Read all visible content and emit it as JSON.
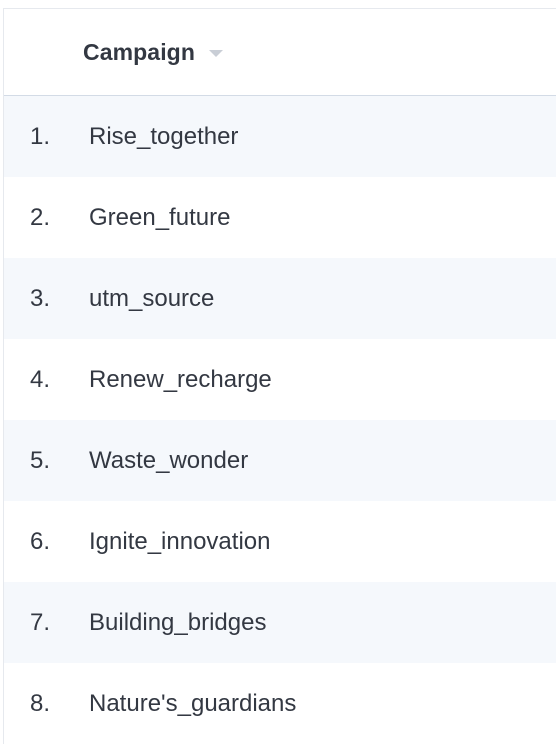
{
  "table": {
    "column_header": "Campaign",
    "sort_icon": "sort-desc-icon",
    "rows": [
      {
        "index": "1.",
        "name": "Rise_together"
      },
      {
        "index": "2.",
        "name": "Green_future"
      },
      {
        "index": "3.",
        "name": "utm_source"
      },
      {
        "index": "4.",
        "name": "Renew_recharge"
      },
      {
        "index": "5.",
        "name": "Waste_wonder"
      },
      {
        "index": "6.",
        "name": "Ignite_innovation"
      },
      {
        "index": "7.",
        "name": "Building_bridges"
      },
      {
        "index": "8.",
        "name": "Nature's_guardians"
      }
    ]
  },
  "colors": {
    "row_stripe": "#f5f8fc",
    "text": "#333842",
    "header_border": "#d3dbe6"
  }
}
